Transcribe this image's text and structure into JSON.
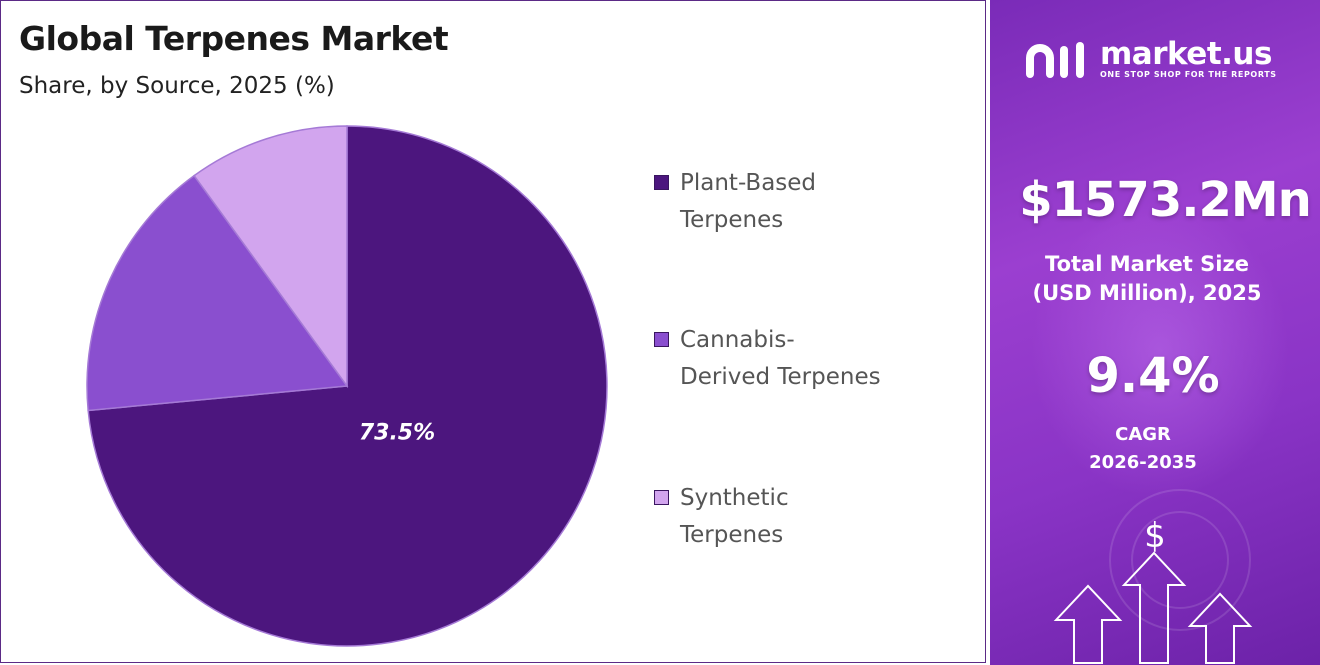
{
  "chart_data": {
    "type": "pie",
    "title": "Global Terpenes Market",
    "subtitle": "Share, by Source, 2025 (%)",
    "categories": [
      "Plant-Based Terpenes",
      "Cannabis-Derived Terpenes",
      "Synthetic Terpenes"
    ],
    "values": [
      73.5,
      16.5,
      10.0
    ],
    "data_labels": [
      "73.5%",
      "",
      ""
    ],
    "colors": [
      "#4c167e",
      "#8a4fcf",
      "#d2a5ee"
    ],
    "legend_placement": "right",
    "start_angle_deg": 0,
    "direction": "clockwise"
  },
  "legend": {
    "items": [
      {
        "line1": "Plant-Based",
        "line2": "Terpenes",
        "color": "#4c167e"
      },
      {
        "line1": "Cannabis-",
        "line2": "Derived Terpenes",
        "color": "#8a4fcf"
      },
      {
        "line1": "Synthetic",
        "line2": "Terpenes",
        "color": "#d2a5ee"
      }
    ]
  },
  "sidebar": {
    "brand_name": "market.us",
    "brand_tagline": "ONE STOP SHOP FOR THE REPORTS",
    "market_size_value": "$1573.2Mn",
    "market_size_label_line1": "Total Market Size",
    "market_size_label_line2": "(USD Million), 2025",
    "cagr_value": "9.4%",
    "cagr_label_line1": "CAGR",
    "cagr_label_line2": "2026-2035",
    "dollar_symbol": "$",
    "accent_color": "#8a34c6"
  }
}
